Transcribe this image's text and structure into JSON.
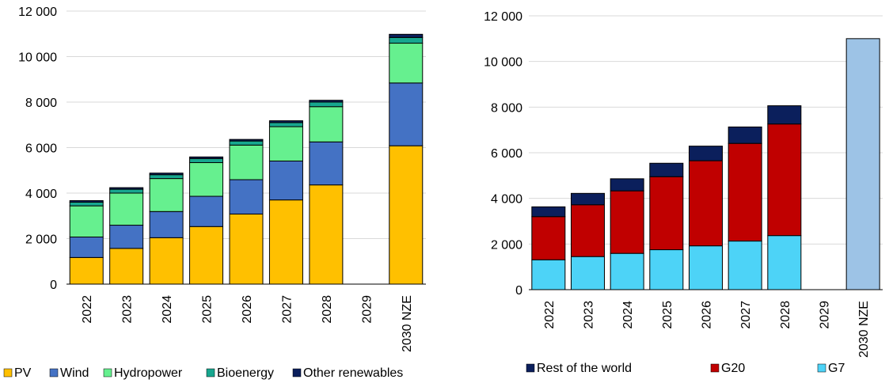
{
  "chart_data": [
    {
      "type": "bar",
      "stacked": true,
      "categories": [
        "2022",
        "2023",
        "2024",
        "2025",
        "2026",
        "2027",
        "2028",
        "2029",
        "2030 NZE"
      ],
      "ylim": [
        0,
        12000
      ],
      "yticks": [
        0,
        2000,
        4000,
        6000,
        8000,
        10000,
        12000
      ],
      "ytick_labels": [
        "0",
        "2 000",
        "4 000",
        "6 000",
        "8 000",
        "10 000",
        "12 000"
      ],
      "grid": true,
      "legend_position": "bottom",
      "series": [
        {
          "name": "PV",
          "color": "#FFC000",
          "values": [
            1170,
            1570,
            2040,
            2530,
            3080,
            3700,
            4360,
            null,
            6080
          ]
        },
        {
          "name": "Wind",
          "color": "#4472C4",
          "values": [
            900,
            1020,
            1150,
            1330,
            1510,
            1710,
            1890,
            null,
            2760
          ]
        },
        {
          "name": "Hydropower",
          "color": "#66F08F",
          "values": [
            1370,
            1410,
            1450,
            1480,
            1520,
            1510,
            1550,
            null,
            1750
          ]
        },
        {
          "name": "Bioenergy",
          "color": "#17A78F",
          "values": [
            160,
            170,
            170,
            180,
            180,
            180,
            200,
            null,
            250
          ]
        },
        {
          "name": "Other renewables",
          "color": "#0B1F5C",
          "values": [
            70,
            70,
            70,
            70,
            70,
            80,
            80,
            null,
            140
          ]
        }
      ]
    },
    {
      "type": "bar",
      "stacked": true,
      "categories": [
        "2022",
        "2023",
        "2024",
        "2025",
        "2026",
        "2027",
        "2028",
        "2029",
        "2030 NZE"
      ],
      "ylim": [
        0,
        12000
      ],
      "yticks": [
        0,
        2000,
        4000,
        6000,
        8000,
        10000,
        12000
      ],
      "ytick_labels": [
        "0",
        "2 000",
        "4 000",
        "6 000",
        "8 000",
        "10 000",
        "12 000"
      ],
      "grid": true,
      "legend_position": "bottom",
      "series": [
        {
          "name": "G7",
          "color": "#4DD3F7",
          "values": [
            1310,
            1450,
            1590,
            1750,
            1920,
            2130,
            2370,
            null,
            null
          ]
        },
        {
          "name": "G20",
          "color": "#C00000",
          "values": [
            1890,
            2270,
            2740,
            3200,
            3730,
            4280,
            4890,
            null,
            null
          ]
        },
        {
          "name": "Rest of the world",
          "color": "#0B1F5C",
          "values": [
            430,
            500,
            530,
            590,
            640,
            720,
            800,
            null,
            null
          ]
        },
        {
          "name": "",
          "color": "#9DC3E6",
          "values": [
            null,
            null,
            null,
            null,
            null,
            null,
            null,
            null,
            11000
          ]
        }
      ]
    }
  ]
}
